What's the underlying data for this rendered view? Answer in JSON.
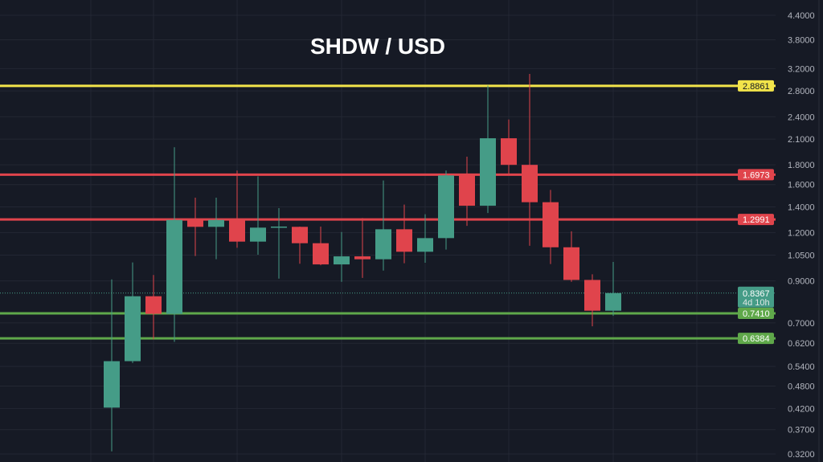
{
  "chart_data": {
    "type": "candlestick",
    "title": "SHDW / USD",
    "y_scale": "log",
    "ylim": [
      0.31,
      4.6
    ],
    "grid": true,
    "y_ticks": [
      "4.4000",
      "3.8000",
      "3.2000",
      "2.8000",
      "2.4000",
      "2.1000",
      "1.8000",
      "1.6000",
      "1.4000",
      "1.2000",
      "1.0500",
      "0.9000",
      "0.7000",
      "0.6200",
      "0.5400",
      "0.4800",
      "0.4200",
      "0.3700",
      "0.3200"
    ],
    "candles": [
      {
        "o": 0.422,
        "h": 0.908,
        "l": 0.325,
        "c": 0.557
      },
      {
        "o": 0.557,
        "h": 1.005,
        "l": 0.551,
        "c": 0.821
      },
      {
        "o": 0.821,
        "h": 0.932,
        "l": 0.635,
        "c": 0.739
      },
      {
        "o": 0.739,
        "h": 2.0,
        "l": 0.625,
        "c": 1.295
      },
      {
        "o": 1.295,
        "h": 1.48,
        "l": 1.044,
        "c": 1.243
      },
      {
        "o": 1.243,
        "h": 1.48,
        "l": 1.024,
        "c": 1.295
      },
      {
        "o": 1.295,
        "h": 1.74,
        "l": 1.097,
        "c": 1.138
      },
      {
        "o": 1.138,
        "h": 1.68,
        "l": 1.052,
        "c": 1.237
      },
      {
        "o": 1.24,
        "h": 1.39,
        "l": 0.912,
        "c": 1.245
      },
      {
        "o": 1.243,
        "h": 1.245,
        "l": 0.997,
        "c": 1.127
      },
      {
        "o": 1.127,
        "h": 1.245,
        "l": 0.988,
        "c": 0.993
      },
      {
        "o": 0.993,
        "h": 1.205,
        "l": 0.895,
        "c": 1.042
      },
      {
        "o": 1.042,
        "h": 1.31,
        "l": 0.916,
        "c": 1.024
      },
      {
        "o": 1.024,
        "h": 1.64,
        "l": 0.957,
        "c": 1.225
      },
      {
        "o": 1.225,
        "h": 1.42,
        "l": 1.0,
        "c": 1.071
      },
      {
        "o": 1.071,
        "h": 1.34,
        "l": 1.003,
        "c": 1.162
      },
      {
        "o": 1.162,
        "h": 1.74,
        "l": 1.085,
        "c": 1.69
      },
      {
        "o": 1.69,
        "h": 1.89,
        "l": 1.25,
        "c": 1.41
      },
      {
        "o": 1.41,
        "h": 2.89,
        "l": 1.35,
        "c": 2.11
      },
      {
        "o": 2.11,
        "h": 2.36,
        "l": 1.7,
        "c": 1.8
      },
      {
        "o": 1.8,
        "h": 3.1,
        "l": 1.11,
        "c": 1.44
      },
      {
        "o": 1.44,
        "h": 1.55,
        "l": 0.995,
        "c": 1.1
      },
      {
        "o": 1.1,
        "h": 1.21,
        "l": 0.895,
        "c": 0.905
      },
      {
        "o": 0.905,
        "h": 0.936,
        "l": 0.686,
        "c": 0.753
      },
      {
        "o": 0.753,
        "h": 1.008,
        "l": 0.73,
        "c": 0.8367
      }
    ],
    "levels": [
      {
        "value": 2.8861,
        "label": "2.8861",
        "color": "#f2e44a",
        "text_color": "#131722"
      },
      {
        "value": 1.6973,
        "label": "1.6973",
        "color": "#e0444c",
        "text_color": "#ffffff"
      },
      {
        "value": 1.2991,
        "label": "1.2991",
        "color": "#e0444c",
        "text_color": "#ffffff"
      },
      {
        "value": 0.741,
        "label": "0.7410",
        "color": "#5fa84a",
        "text_color": "#ffffff"
      },
      {
        "value": 0.6384,
        "label": "0.6384",
        "color": "#5fa84a",
        "text_color": "#ffffff"
      }
    ],
    "last_price": {
      "value": 0.8367,
      "label": "0.8367",
      "countdown": "4d 10h",
      "color": "#459c87"
    },
    "colors": {
      "up": "#459c87",
      "down": "#e0444c",
      "background": "#161a25",
      "grid": "#232733"
    }
  }
}
